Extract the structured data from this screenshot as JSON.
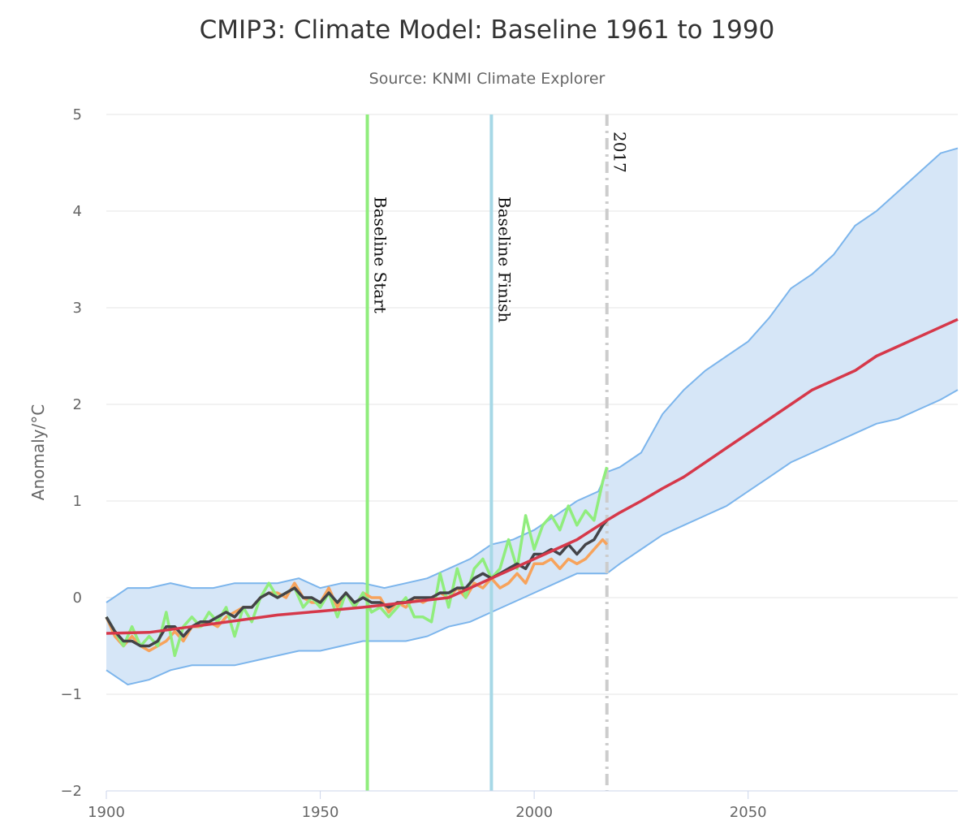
{
  "chart_data": {
    "type": "line",
    "title": "CMIP3: Climate Model: Baseline 1961 to 1990",
    "subtitle": "Source: KNMI Climate Explorer",
    "xlabel": "",
    "ylabel": "Anomaly/°C",
    "xlim": [
      1900,
      2099
    ],
    "ylim": [
      -2,
      5
    ],
    "x_ticks": [
      "1900",
      "1950",
      "2000",
      "2050"
    ],
    "y_ticks": [
      "−2",
      "−1",
      "0",
      "1",
      "2",
      "3",
      "4",
      "5"
    ],
    "grid": "horizontal",
    "legend": "none",
    "plot_lines": [
      {
        "label": "Baseline Start",
        "x": 1961,
        "color": "#90ed7d",
        "style": "solid"
      },
      {
        "label": "Baseline Finish",
        "x": 1990,
        "color": "#a6d8e6",
        "style": "solid"
      },
      {
        "label": "2017",
        "x": 2017,
        "color": "#cccccc",
        "style": "dashdot"
      }
    ],
    "range": {
      "color": "#7cb5ec",
      "fill": "#d6e6f7",
      "x": [
        1900,
        1905,
        1910,
        1915,
        1920,
        1925,
        1930,
        1935,
        1940,
        1945,
        1950,
        1955,
        1960,
        1965,
        1970,
        1975,
        1980,
        1985,
        1990,
        1995,
        2000,
        2005,
        2010,
        2015,
        2017,
        2020,
        2025,
        2030,
        2035,
        2040,
        2045,
        2050,
        2055,
        2060,
        2065,
        2070,
        2075,
        2080,
        2085,
        2090,
        2095,
        2099
      ],
      "high": [
        -0.05,
        0.1,
        0.1,
        0.15,
        0.1,
        0.1,
        0.15,
        0.15,
        0.15,
        0.2,
        0.1,
        0.15,
        0.15,
        0.1,
        0.15,
        0.2,
        0.3,
        0.4,
        0.55,
        0.6,
        0.7,
        0.85,
        1.0,
        1.1,
        1.3,
        1.35,
        1.5,
        1.9,
        2.15,
        2.35,
        2.5,
        2.65,
        2.9,
        3.2,
        3.35,
        3.55,
        3.85,
        4.0,
        4.2,
        4.4,
        4.6,
        4.65
      ],
      "low": [
        -0.75,
        -0.9,
        -0.85,
        -0.75,
        -0.7,
        -0.7,
        -0.7,
        -0.65,
        -0.6,
        -0.55,
        -0.55,
        -0.5,
        -0.45,
        -0.45,
        -0.45,
        -0.4,
        -0.3,
        -0.25,
        -0.15,
        -0.05,
        0.05,
        0.15,
        0.25,
        0.25,
        0.25,
        0.35,
        0.5,
        0.65,
        0.75,
        0.85,
        0.95,
        1.1,
        1.25,
        1.4,
        1.5,
        1.6,
        1.7,
        1.8,
        1.85,
        1.95,
        2.05,
        2.15
      ]
    },
    "series": [
      {
        "color": "#f7a35c",
        "x": [
          1900,
          1902,
          1904,
          1906,
          1908,
          1910,
          1912,
          1914,
          1916,
          1918,
          1920,
          1922,
          1924,
          1926,
          1928,
          1930,
          1932,
          1934,
          1936,
          1938,
          1940,
          1942,
          1944,
          1946,
          1948,
          1950,
          1952,
          1954,
          1956,
          1958,
          1960,
          1962,
          1964,
          1966,
          1968,
          1970,
          1972,
          1974,
          1976,
          1978,
          1980,
          1982,
          1984,
          1986,
          1988,
          1990,
          1992,
          1994,
          1996,
          1998,
          2000,
          2002,
          2004,
          2006,
          2008,
          2010,
          2012,
          2014,
          2016,
          2017
        ],
        "y": [
          -0.2,
          -0.4,
          -0.5,
          -0.4,
          -0.5,
          -0.55,
          -0.5,
          -0.45,
          -0.35,
          -0.45,
          -0.3,
          -0.3,
          -0.25,
          -0.3,
          -0.2,
          -0.15,
          -0.1,
          -0.1,
          0.0,
          0.05,
          0.05,
          0.0,
          0.15,
          0.0,
          -0.05,
          -0.05,
          0.1,
          -0.1,
          0.05,
          -0.1,
          0.05,
          0.0,
          0.0,
          -0.15,
          -0.05,
          -0.1,
          0.0,
          -0.05,
          0.0,
          0.05,
          0.0,
          0.1,
          0.0,
          0.15,
          0.1,
          0.2,
          0.1,
          0.15,
          0.25,
          0.15,
          0.35,
          0.35,
          0.4,
          0.3,
          0.4,
          0.35,
          0.4,
          0.5,
          0.6,
          0.55
        ]
      },
      {
        "color": "#90ed7d",
        "x": [
          1900,
          1902,
          1904,
          1906,
          1908,
          1910,
          1912,
          1914,
          1916,
          1918,
          1920,
          1922,
          1924,
          1926,
          1928,
          1930,
          1932,
          1934,
          1936,
          1938,
          1940,
          1942,
          1944,
          1946,
          1948,
          1950,
          1952,
          1954,
          1956,
          1958,
          1960,
          1962,
          1964,
          1966,
          1968,
          1970,
          1972,
          1974,
          1976,
          1978,
          1980,
          1982,
          1984,
          1986,
          1988,
          1990,
          1992,
          1994,
          1996,
          1998,
          2000,
          2002,
          2004,
          2006,
          2008,
          2010,
          2012,
          2014,
          2016,
          2017
        ],
        "y": [
          -0.2,
          -0.35,
          -0.5,
          -0.3,
          -0.5,
          -0.4,
          -0.5,
          -0.15,
          -0.6,
          -0.3,
          -0.2,
          -0.3,
          -0.15,
          -0.25,
          -0.1,
          -0.4,
          -0.1,
          -0.25,
          0.0,
          0.15,
          0.0,
          0.05,
          0.1,
          -0.1,
          0.0,
          -0.1,
          0.05,
          -0.2,
          0.05,
          -0.1,
          0.05,
          -0.15,
          -0.1,
          -0.2,
          -0.1,
          0.0,
          -0.2,
          -0.2,
          -0.25,
          0.25,
          -0.1,
          0.3,
          0.0,
          0.3,
          0.4,
          0.2,
          0.3,
          0.6,
          0.3,
          0.85,
          0.5,
          0.75,
          0.85,
          0.7,
          0.95,
          0.75,
          0.9,
          0.8,
          1.2,
          1.35
        ]
      },
      {
        "color": "#434348",
        "x": [
          1900,
          1902,
          1904,
          1906,
          1908,
          1910,
          1912,
          1914,
          1916,
          1918,
          1920,
          1922,
          1924,
          1926,
          1928,
          1930,
          1932,
          1934,
          1936,
          1938,
          1940,
          1942,
          1944,
          1946,
          1948,
          1950,
          1952,
          1954,
          1956,
          1958,
          1960,
          1962,
          1964,
          1966,
          1968,
          1970,
          1972,
          1974,
          1976,
          1978,
          1980,
          1982,
          1984,
          1986,
          1988,
          1990,
          1992,
          1994,
          1996,
          1998,
          2000,
          2002,
          2004,
          2006,
          2008,
          2010,
          2012,
          2014,
          2016,
          2017
        ],
        "y": [
          -0.2,
          -0.35,
          -0.45,
          -0.45,
          -0.5,
          -0.5,
          -0.45,
          -0.3,
          -0.3,
          -0.4,
          -0.3,
          -0.25,
          -0.25,
          -0.2,
          -0.15,
          -0.2,
          -0.1,
          -0.1,
          0.0,
          0.05,
          0.0,
          0.05,
          0.1,
          0.0,
          0.0,
          -0.05,
          0.05,
          -0.05,
          0.05,
          -0.05,
          0.0,
          -0.05,
          -0.05,
          -0.1,
          -0.05,
          -0.05,
          0.0,
          0.0,
          0.0,
          0.05,
          0.05,
          0.1,
          0.1,
          0.2,
          0.25,
          0.2,
          0.25,
          0.3,
          0.35,
          0.3,
          0.45,
          0.45,
          0.5,
          0.45,
          0.55,
          0.45,
          0.55,
          0.6,
          0.75,
          0.8
        ]
      },
      {
        "color": "#d6384a",
        "x": [
          1900,
          1910,
          1920,
          1930,
          1940,
          1950,
          1960,
          1970,
          1980,
          1985,
          1990,
          1995,
          2000,
          2005,
          2010,
          2017,
          2020,
          2025,
          2030,
          2035,
          2040,
          2045,
          2050,
          2055,
          2060,
          2065,
          2070,
          2075,
          2080,
          2085,
          2090,
          2095,
          2099
        ],
        "y": [
          -0.37,
          -0.36,
          -0.3,
          -0.24,
          -0.18,
          -0.14,
          -0.1,
          -0.05,
          0.0,
          0.1,
          0.2,
          0.3,
          0.4,
          0.5,
          0.6,
          0.8,
          0.88,
          1.0,
          1.13,
          1.25,
          1.4,
          1.55,
          1.7,
          1.85,
          2.0,
          2.15,
          2.25,
          2.35,
          2.5,
          2.6,
          2.7,
          2.8,
          2.88
        ]
      }
    ]
  }
}
